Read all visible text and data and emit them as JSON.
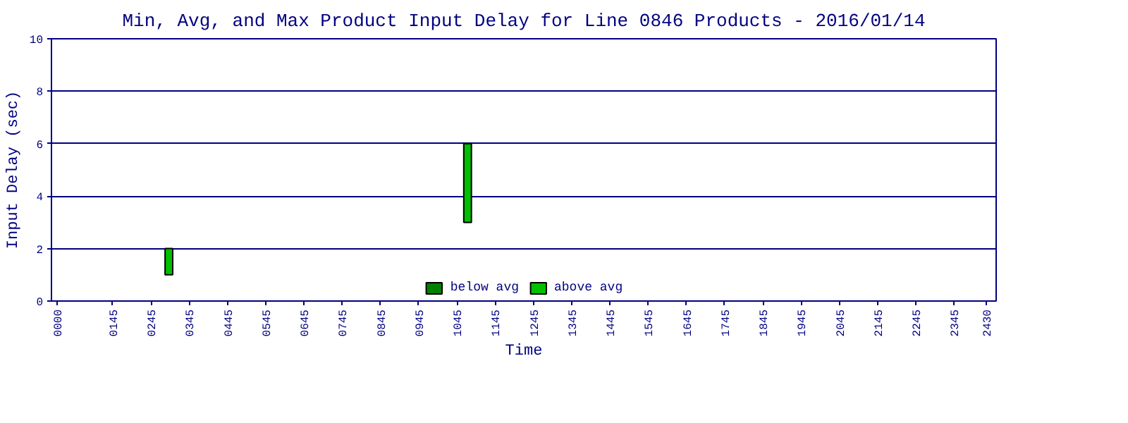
{
  "chart_data": {
    "type": "bar",
    "title": "Min, Avg, and Max Product Input Delay for Line 0846 Products - 2016/01/14",
    "xlabel": "Time",
    "ylabel": "Input Delay (sec)",
    "x": [
      292,
      1073
    ],
    "series": [
      {
        "name": "below avg",
        "color": "#008000",
        "values": [
          null,
          null
        ]
      },
      {
        "name": "above avg",
        "color": "#00c000",
        "values": [
          1,
          3
        ],
        "base": [
          1,
          3
        ]
      }
    ],
    "xlim": [
      -15,
      2455
    ],
    "xticks": [
      {
        "value": 0,
        "label": "0000"
      },
      {
        "value": 145,
        "label": "0145"
      },
      {
        "value": 245,
        "label": "0245"
      },
      {
        "value": 345,
        "label": "0345"
      },
      {
        "value": 445,
        "label": "0445"
      },
      {
        "value": 545,
        "label": "0545"
      },
      {
        "value": 645,
        "label": "0645"
      },
      {
        "value": 745,
        "label": "0745"
      },
      {
        "value": 845,
        "label": "0845"
      },
      {
        "value": 945,
        "label": "0945"
      },
      {
        "value": 1045,
        "label": "1045"
      },
      {
        "value": 1145,
        "label": "1145"
      },
      {
        "value": 1245,
        "label": "1245"
      },
      {
        "value": 1345,
        "label": "1345"
      },
      {
        "value": 1445,
        "label": "1445"
      },
      {
        "value": 1545,
        "label": "1545"
      },
      {
        "value": 1645,
        "label": "1645"
      },
      {
        "value": 1745,
        "label": "1745"
      },
      {
        "value": 1845,
        "label": "1845"
      },
      {
        "value": 1945,
        "label": "1945"
      },
      {
        "value": 2045,
        "label": "2045"
      },
      {
        "value": 2145,
        "label": "2145"
      },
      {
        "value": 2245,
        "label": "2245"
      },
      {
        "value": 2345,
        "label": "2345"
      },
      {
        "value": 2430,
        "label": "2430"
      }
    ],
    "ylim": [
      0,
      10
    ],
    "yticks": [
      0,
      2,
      4,
      6,
      8,
      10
    ],
    "grid": "y",
    "legend": "bottom"
  }
}
